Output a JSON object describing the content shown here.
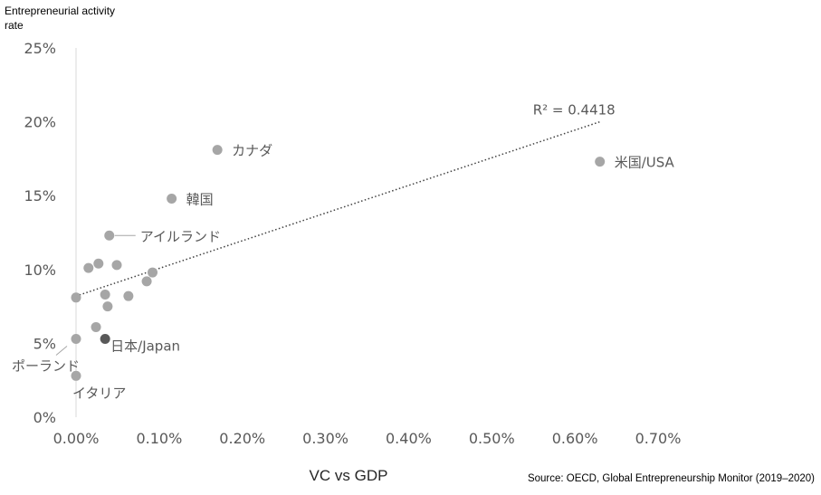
{
  "chart_data": {
    "type": "scatter",
    "title": "",
    "ylabel": "Entrepreneurial activity rate",
    "ylabel_lines": [
      "Entrepreneurial activity",
      "rate"
    ],
    "xlabel": "VC vs GDP",
    "source": "Source: OECD, Global Entrepreneurship Monitor (2019–2020)",
    "xlim": [
      0,
      0.7
    ],
    "ylim": [
      0,
      25
    ],
    "x_ticks": [
      "0.00%",
      "0.10%",
      "0.20%",
      "0.30%",
      "0.40%",
      "0.50%",
      "0.60%",
      "0.70%"
    ],
    "y_ticks": [
      "0%",
      "5%",
      "10%",
      "15%",
      "20%",
      "25%"
    ],
    "grid": false,
    "legend": "none",
    "colors": {
      "point": "#a6a6a6",
      "highlight": "#595959",
      "trendline": "#404040",
      "text": "#595959"
    },
    "trendline": {
      "type": "linear",
      "label": "R² = 0.4418",
      "from": [
        0.0,
        8.2
      ],
      "to": [
        0.63,
        20.0
      ]
    },
    "points": [
      {
        "x": 0.63,
        "y": 17.3,
        "label": "米国/USA"
      },
      {
        "x": 0.17,
        "y": 18.1,
        "label": "カナダ"
      },
      {
        "x": 0.115,
        "y": 14.8,
        "label": "韓国"
      },
      {
        "x": 0.04,
        "y": 12.3,
        "label": "アイルランド"
      },
      {
        "x": 0.015,
        "y": 10.1
      },
      {
        "x": 0.027,
        "y": 10.4
      },
      {
        "x": 0.049,
        "y": 10.3
      },
      {
        "x": 0.092,
        "y": 9.8
      },
      {
        "x": 0.085,
        "y": 9.2
      },
      {
        "x": 0.035,
        "y": 8.3
      },
      {
        "x": 0.063,
        "y": 8.2
      },
      {
        "x": 0.0,
        "y": 8.1
      },
      {
        "x": 0.038,
        "y": 7.5
      },
      {
        "x": 0.024,
        "y": 6.1
      },
      {
        "x": 0.0,
        "y": 5.3,
        "label": "ポーランド"
      },
      {
        "x": 0.035,
        "y": 5.3,
        "label": "日本/Japan",
        "highlight": true
      },
      {
        "x": 0.0,
        "y": 2.8,
        "label": "イタリア"
      }
    ]
  }
}
